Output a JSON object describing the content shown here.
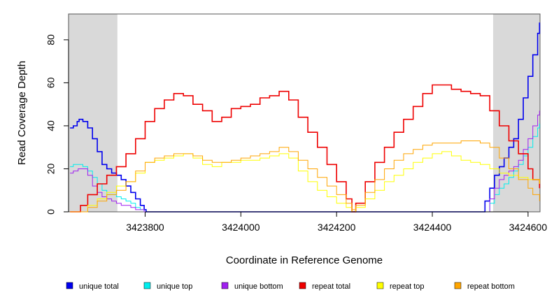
{
  "chart_data": {
    "type": "line",
    "title": "",
    "xlabel": "Coordinate in Reference Genome",
    "ylabel": "Read Coverage Depth",
    "xlim": [
      3423640,
      3424625
    ],
    "ylim": [
      0,
      92
    ],
    "x_ticks": [
      3423800,
      3424000,
      3424200,
      3424400,
      3424600
    ],
    "y_ticks": [
      0,
      20,
      40,
      60,
      80
    ],
    "shaded_regions": [
      {
        "from": 3423640,
        "to": 3423742,
        "color": "#d9d9d9"
      },
      {
        "from": 3424527,
        "to": 3424625,
        "color": "#d9d9d9"
      }
    ],
    "grid": false,
    "legend_position": "bottom",
    "series": [
      {
        "name": "unique total",
        "color": "#0000ee",
        "x": [
          3423643,
          3423650,
          3423658,
          3423662,
          3423670,
          3423680,
          3423690,
          3423700,
          3423710,
          3423720,
          3423730,
          3423740,
          3423750,
          3423760,
          3423770,
          3423780,
          3423790,
          3423798,
          3423802,
          3424505,
          3424510,
          3424520,
          3424530,
          3424540,
          3424550,
          3424560,
          3424570,
          3424580,
          3424590,
          3424600,
          3424610,
          3424620,
          3424624
        ],
        "y": [
          39,
          40,
          42,
          43,
          42,
          39,
          34,
          28,
          22,
          20,
          18,
          17,
          15,
          12,
          9,
          6,
          3,
          1,
          0,
          0,
          5,
          11,
          17,
          21,
          25,
          30,
          34,
          43,
          53,
          63,
          73,
          83,
          88
        ]
      },
      {
        "name": "unique top",
        "color": "#00eeee",
        "x": [
          3423643,
          3423650,
          3423660,
          3423670,
          3423680,
          3423690,
          3423700,
          3423710,
          3423720,
          3423730,
          3423740,
          3423750,
          3423760,
          3423770,
          3423780,
          3423790,
          3423798,
          3423802,
          3424510,
          3424520,
          3424530,
          3424540,
          3424550,
          3424560,
          3424570,
          3424580,
          3424590,
          3424600,
          3424610,
          3424620,
          3424624
        ],
        "y": [
          21,
          22,
          22,
          21,
          19,
          16,
          13,
          10,
          8,
          8,
          7,
          6,
          5,
          4,
          2,
          1,
          0,
          0,
          0,
          4,
          8,
          11,
          13,
          16,
          19,
          22,
          26,
          30,
          35,
          39,
          41
        ]
      },
      {
        "name": "unique bottom",
        "color": "#a020f0",
        "x": [
          3423643,
          3423650,
          3423660,
          3423670,
          3423680,
          3423690,
          3423700,
          3423710,
          3423720,
          3423730,
          3423740,
          3423750,
          3423760,
          3423770,
          3423780,
          3423790,
          3423798,
          3423802,
          3424510,
          3424520,
          3424530,
          3424540,
          3424550,
          3424560,
          3424570,
          3424580,
          3424590,
          3424600,
          3424610,
          3424620,
          3424624
        ],
        "y": [
          18,
          19,
          20,
          20,
          17,
          12,
          9,
          7,
          6,
          5,
          4,
          3,
          3,
          2,
          1,
          1,
          0,
          0,
          0,
          6,
          11,
          15,
          17,
          19,
          21,
          24,
          29,
          34,
          40,
          45,
          47
        ]
      },
      {
        "name": "repeat total",
        "color": "#ee0000",
        "x": [
          3423643,
          3423655,
          3423665,
          3423680,
          3423700,
          3423720,
          3423740,
          3423760,
          3423780,
          3423800,
          3423820,
          3423840,
          3423860,
          3423880,
          3423900,
          3423920,
          3423940,
          3423960,
          3423980,
          3424000,
          3424020,
          3424040,
          3424060,
          3424080,
          3424100,
          3424120,
          3424140,
          3424160,
          3424180,
          3424200,
          3424220,
          3424232,
          3424240,
          3424260,
          3424280,
          3424300,
          3424320,
          3424340,
          3424360,
          3424380,
          3424400,
          3424420,
          3424440,
          3424460,
          3424480,
          3424500,
          3424520,
          3424540,
          3424560,
          3424580,
          3424600,
          3424610,
          3424624
        ],
        "y": [
          0,
          0,
          3,
          8,
          13,
          17,
          21,
          27,
          34,
          42,
          48,
          52,
          55,
          54,
          50,
          47,
          42,
          44,
          48,
          49,
          50,
          53,
          54,
          56,
          52,
          44,
          37,
          30,
          22,
          14,
          6,
          0,
          4,
          14,
          23,
          30,
          37,
          43,
          49,
          55,
          59,
          59,
          57,
          56,
          55,
          54,
          47,
          40,
          33,
          27,
          20,
          15,
          11
        ]
      },
      {
        "name": "repeat top",
        "color": "#ffff00",
        "x": [
          3423643,
          3423660,
          3423680,
          3423700,
          3423720,
          3423740,
          3423760,
          3423780,
          3423800,
          3423820,
          3423840,
          3423860,
          3423880,
          3423900,
          3423920,
          3423940,
          3423960,
          3423980,
          3424000,
          3424020,
          3424040,
          3424060,
          3424080,
          3424100,
          3424120,
          3424140,
          3424160,
          3424180,
          3424200,
          3424220,
          3424232,
          3424240,
          3424260,
          3424280,
          3424300,
          3424320,
          3424340,
          3424360,
          3424380,
          3424400,
          3424420,
          3424440,
          3424460,
          3424480,
          3424500,
          3424520,
          3424540,
          3424560,
          3424580,
          3424600,
          3424624
        ],
        "y": [
          0,
          0,
          3,
          6,
          9,
          12,
          14,
          18,
          23,
          24,
          25,
          26,
          27,
          25,
          22,
          21,
          23,
          23,
          24,
          24,
          25,
          26,
          27,
          25,
          19,
          14,
          10,
          7,
          4,
          2,
          0,
          2,
          6,
          10,
          14,
          17,
          20,
          23,
          25,
          27,
          28,
          26,
          24,
          23,
          22,
          20,
          18,
          17,
          16,
          15,
          13
        ]
      },
      {
        "name": "repeat bottom",
        "color": "#ffa500",
        "x": [
          3423643,
          3423660,
          3423680,
          3423700,
          3423720,
          3423740,
          3423760,
          3423780,
          3423800,
          3423820,
          3423840,
          3423860,
          3423880,
          3423900,
          3423920,
          3423940,
          3423960,
          3423980,
          3424000,
          3424020,
          3424040,
          3424060,
          3424080,
          3424100,
          3424120,
          3424140,
          3424160,
          3424180,
          3424200,
          3424220,
          3424232,
          3424240,
          3424260,
          3424280,
          3424300,
          3424320,
          3424340,
          3424360,
          3424380,
          3424400,
          3424420,
          3424440,
          3424460,
          3424480,
          3424500,
          3424520,
          3424540,
          3424560,
          3424580,
          3424600,
          3424610,
          3424624
        ],
        "y": [
          0,
          0,
          2,
          5,
          8,
          10,
          14,
          19,
          23,
          25,
          26,
          27,
          27,
          26,
          24,
          23,
          23,
          24,
          25,
          26,
          27,
          28,
          30,
          28,
          24,
          20,
          16,
          12,
          8,
          4,
          1,
          3,
          9,
          15,
          20,
          24,
          27,
          29,
          31,
          32,
          32,
          32,
          33,
          33,
          32,
          30,
          25,
          20,
          15,
          11,
          8,
          5
        ]
      }
    ]
  }
}
